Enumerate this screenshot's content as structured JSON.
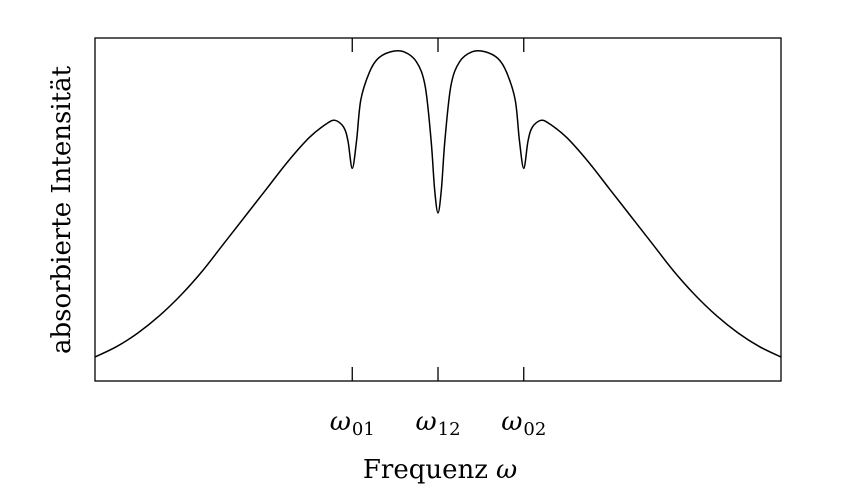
{
  "chart_data": {
    "type": "line",
    "title": "",
    "xlabel": "Frequenz",
    "xlabel_symbol": "ω",
    "ylabel": "absorbierte Intensität",
    "xlim": [
      0,
      8
    ],
    "ylim": [
      0,
      1.0
    ],
    "grid": false,
    "legend": "none",
    "ticks": [
      {
        "x": 3.0,
        "base": "ω",
        "sub": "01"
      },
      {
        "x": 4.0,
        "base": "ω",
        "sub": "12"
      },
      {
        "x": 5.0,
        "base": "ω",
        "sub": "02"
      }
    ],
    "series": [
      {
        "color": "#000000",
        "x": [
          0.0,
          0.25,
          0.5,
          0.75,
          1.0,
          1.25,
          1.5,
          1.75,
          2.0,
          2.25,
          2.5,
          2.7,
          2.8,
          2.9,
          2.95,
          3.0,
          3.05,
          3.1,
          3.2,
          3.3,
          3.45,
          3.6,
          3.75,
          3.85,
          3.92,
          3.96,
          4.0,
          4.04,
          4.08,
          4.15,
          4.25,
          4.4,
          4.55,
          4.7,
          4.8,
          4.9,
          4.95,
          5.0,
          5.05,
          5.1,
          5.2,
          5.3,
          5.5,
          5.75,
          6.0,
          6.25,
          6.5,
          6.75,
          7.0,
          7.25,
          7.5,
          7.75,
          8.0
        ],
        "y": [
          0.07,
          0.1,
          0.14,
          0.19,
          0.25,
          0.32,
          0.4,
          0.48,
          0.56,
          0.64,
          0.71,
          0.75,
          0.76,
          0.74,
          0.7,
          0.62,
          0.7,
          0.82,
          0.9,
          0.94,
          0.96,
          0.96,
          0.93,
          0.86,
          0.7,
          0.56,
          0.49,
          0.56,
          0.7,
          0.86,
          0.93,
          0.96,
          0.96,
          0.94,
          0.9,
          0.82,
          0.7,
          0.62,
          0.7,
          0.74,
          0.76,
          0.75,
          0.71,
          0.64,
          0.56,
          0.48,
          0.4,
          0.32,
          0.25,
          0.19,
          0.14,
          0.1,
          0.07
        ]
      }
    ]
  }
}
